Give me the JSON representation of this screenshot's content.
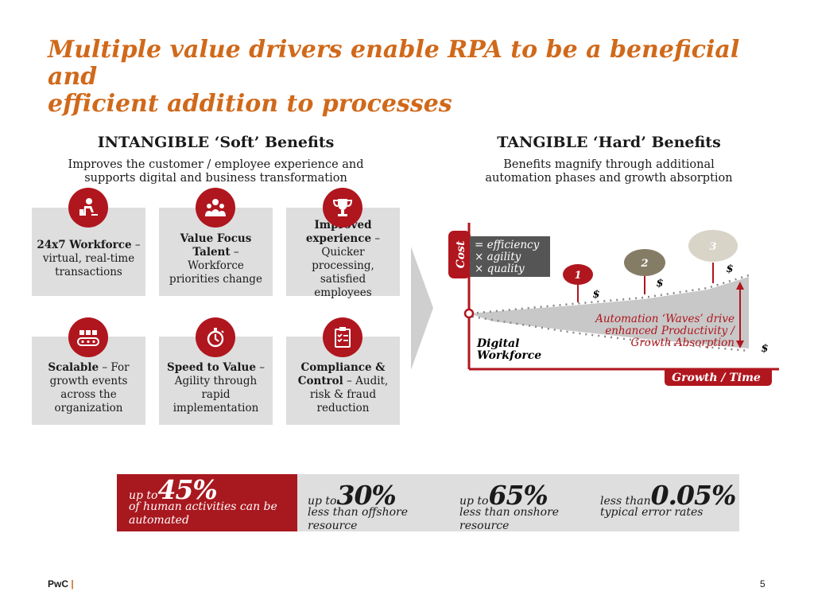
{
  "title": {
    "line1": "Multiple value drivers enable RPA to be a beneficial and",
    "line2": "efficient addition to processes"
  },
  "intangible": {
    "heading": "INTANGIBLE ‘Soft’ Benefits",
    "sub1": "Improves the customer / employee experience and",
    "sub2": "supports digital and business transformation",
    "cards": [
      {
        "icon": "robot-worker-icon",
        "bold": "24x7 Workforce",
        "rest": " – virtual, real-time transactions"
      },
      {
        "icon": "team-people-icon",
        "bold": "Value Focus Talent",
        "rest": " – Workforce priorities change"
      },
      {
        "icon": "trophy-icon",
        "bold": "Improved experience",
        "rest": " – Quicker processing, satisfied employees"
      },
      {
        "icon": "conveyor-belt-icon",
        "bold": "Scalable",
        "rest": " – For growth events across the organization"
      },
      {
        "icon": "stopwatch-icon",
        "bold": "Speed to Value",
        "rest": " – Agility through rapid implementation"
      },
      {
        "icon": "clipboard-check-icon",
        "bold": "Compliance & Control",
        "rest": " – Audit, risk & fraud reduction"
      }
    ]
  },
  "tangible": {
    "heading": "TANGIBLE ‘Hard’ Benefits",
    "sub1": "Benefits magnify through additional",
    "sub2": "automation phases and growth absorption",
    "cost_label": "Cost",
    "legend": [
      "= efficiency",
      "× agility",
      "× quality"
    ],
    "waves": [
      "1",
      "2",
      "3"
    ],
    "dollar": "$",
    "digital_workforce_1": "Digital",
    "digital_workforce_2": "Workforce",
    "annotation_1": "Automation ‘Waves’ drive",
    "annotation_2": "enhanced Productivity /",
    "annotation_3": "Growth Absorption",
    "x_label": "Growth / Time",
    "colors": {
      "red": "#b0161e",
      "dark_olive": "#857c66",
      "light": "#d9d4c8",
      "grey_box": "#555555"
    }
  },
  "stats": [
    {
      "pre": "up to",
      "value": "45%",
      "desc1": "of human activities can be",
      "desc2": "automated"
    },
    {
      "pre": "up to",
      "value": "30%",
      "desc1": "less than offshore resource",
      "desc2": ""
    },
    {
      "pre": "up to",
      "value": "65%",
      "desc1": "less than onshore resource",
      "desc2": ""
    },
    {
      "pre": "less than",
      "value": "0.05%",
      "desc1": "typical error rates",
      "desc2": ""
    }
  ],
  "footer": {
    "brand": "PwC",
    "pipe": "|",
    "page": "5"
  }
}
